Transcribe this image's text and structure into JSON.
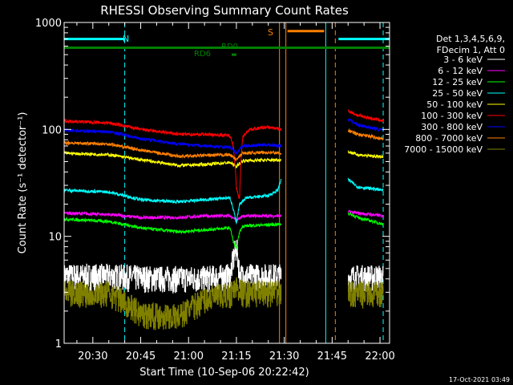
{
  "footer_timestamp": "17-Oct-2021 03:49",
  "chart_data": {
    "type": "line",
    "title": "RHESSI Observing Summary Count Rates",
    "xlabel": "Start Time (10-Sep-06 20:22:42)",
    "ylabel": "Count Rate (s⁻¹ detector⁻¹)",
    "yscale": "log",
    "ylim": [
      1,
      1000
    ],
    "xlim_min": [
      -4,
      98
    ],
    "x_ticks": [
      {
        "min": 5,
        "label": "20:30"
      },
      {
        "min": 20,
        "label": "20:45"
      },
      {
        "min": 35,
        "label": "21:00"
      },
      {
        "min": 50,
        "label": "21:15"
      },
      {
        "min": 65,
        "label": "21:30"
      },
      {
        "min": 80,
        "label": "21:45"
      },
      {
        "min": 95,
        "label": "22:00"
      }
    ],
    "y_ticks": [
      {
        "value": 1,
        "label": "1"
      },
      {
        "value": 10,
        "label": "10"
      },
      {
        "value": 100,
        "label": "100"
      },
      {
        "value": 1000,
        "label": "1000"
      }
    ],
    "legend": {
      "placement": "right",
      "header": [
        "Det 1,3,4,5,6,9,",
        "FDecim 1, Att 0"
      ]
    },
    "series": [
      {
        "name": "3 - 6 keV",
        "color": "#ffffff",
        "mode": "noisy",
        "segments": [
          [
            [
              -4,
              4.3
            ],
            [
              10,
              4.3
            ],
            [
              25,
              4.1
            ],
            [
              40,
              4.1
            ],
            [
              48,
              4.3
            ],
            [
              50,
              8
            ],
            [
              51,
              4.3
            ],
            [
              64,
              4.3
            ]
          ],
          [
            [
              85,
              4.2
            ],
            [
              96,
              4.2
            ]
          ]
        ]
      },
      {
        "name": "6 - 12 keV",
        "color": "#ff00ff",
        "segments": [
          [
            [
              -4,
              16.5
            ],
            [
              10,
              16
            ],
            [
              20,
              15
            ],
            [
              32,
              15
            ],
            [
              40,
              15.5
            ],
            [
              48,
              15.5
            ],
            [
              50,
              14
            ],
            [
              52,
              15.5
            ],
            [
              64,
              15.5
            ]
          ],
          [
            [
              85,
              17
            ],
            [
              88,
              16.5
            ],
            [
              96,
              15.5
            ]
          ]
        ]
      },
      {
        "name": "12 - 25 keV",
        "color": "#00ff00",
        "segments": [
          [
            [
              -4,
              14.5
            ],
            [
              10,
              13.8
            ],
            [
              20,
              12
            ],
            [
              32,
              11
            ],
            [
              40,
              11.5
            ],
            [
              48,
              12
            ],
            [
              49,
              9
            ],
            [
              50,
              7.5
            ],
            [
              51,
              11
            ],
            [
              52,
              12.5
            ],
            [
              64,
              13
            ]
          ],
          [
            [
              85,
              16.5
            ],
            [
              88,
              15
            ],
            [
              96,
              13
            ]
          ]
        ]
      },
      {
        "name": "25 - 50 keV",
        "color": "#00ffff",
        "segments": [
          [
            [
              -4,
              27
            ],
            [
              10,
              26
            ],
            [
              20,
              22
            ],
            [
              32,
              21
            ],
            [
              40,
              22
            ],
            [
              48,
              23
            ],
            [
              49,
              18
            ],
            [
              50,
              13
            ],
            [
              51,
              20
            ],
            [
              53,
              23
            ],
            [
              60,
              24
            ],
            [
              63,
              27
            ],
            [
              64,
              34
            ]
          ],
          [
            [
              85,
              34
            ],
            [
              88,
              29
            ],
            [
              96,
              27
            ]
          ]
        ]
      },
      {
        "name": "50 - 100 keV",
        "color": "#ffff00",
        "segments": [
          [
            [
              -4,
              60
            ],
            [
              10,
              58
            ],
            [
              20,
              52
            ],
            [
              32,
              46
            ],
            [
              40,
              47
            ],
            [
              48,
              49
            ],
            [
              50,
              45
            ],
            [
              52,
              51
            ],
            [
              64,
              52
            ]
          ],
          [
            [
              85,
              62
            ],
            [
              88,
              58
            ],
            [
              96,
              55
            ]
          ]
        ]
      },
      {
        "name": "100 - 300 keV",
        "color": "#ff0000",
        "segments": [
          [
            [
              -4,
              120
            ],
            [
              10,
              115
            ],
            [
              20,
              100
            ],
            [
              32,
              90
            ],
            [
              40,
              90
            ],
            [
              48,
              88
            ],
            [
              49,
              70
            ],
            [
              50,
              28
            ],
            [
              51,
              22
            ],
            [
              52,
              85
            ],
            [
              54,
              100
            ],
            [
              60,
              105
            ],
            [
              64,
              100
            ]
          ],
          [
            [
              85,
              150
            ],
            [
              88,
              135
            ],
            [
              96,
              120
            ]
          ]
        ]
      },
      {
        "name": "300 - 800 keV",
        "color": "#0000ff",
        "segments": [
          [
            [
              -4,
              98
            ],
            [
              10,
              95
            ],
            [
              20,
              82
            ],
            [
              32,
              73
            ],
            [
              40,
              70
            ],
            [
              48,
              68
            ],
            [
              50,
              60
            ],
            [
              52,
              70
            ],
            [
              60,
              72
            ],
            [
              64,
              70
            ]
          ],
          [
            [
              85,
              125
            ],
            [
              88,
              110
            ],
            [
              96,
              98
            ]
          ]
        ]
      },
      {
        "name": "800 - 7000 keV",
        "color": "#ff8000",
        "segments": [
          [
            [
              -4,
              75
            ],
            [
              10,
              73
            ],
            [
              20,
              64
            ],
            [
              32,
              56
            ],
            [
              40,
              57
            ],
            [
              48,
              58
            ],
            [
              50,
              52
            ],
            [
              52,
              60
            ],
            [
              60,
              61
            ],
            [
              64,
              60
            ]
          ],
          [
            [
              85,
              98
            ],
            [
              88,
              90
            ],
            [
              96,
              82
            ]
          ]
        ]
      },
      {
        "name": "7000 - 15000 keV",
        "color": "#808000",
        "mode": "noisy",
        "segments": [
          [
            [
              -4,
              3.0
            ],
            [
              10,
              3.0
            ],
            [
              20,
              1.9
            ],
            [
              32,
              1.8
            ],
            [
              40,
              2.6
            ],
            [
              48,
              2.9
            ],
            [
              50,
              3.4
            ],
            [
              52,
              3.0
            ],
            [
              64,
              3.0
            ]
          ],
          [
            [
              85,
              3.0
            ],
            [
              96,
              2.9
            ]
          ]
        ]
      }
    ],
    "annotations": [
      {
        "label": "N",
        "color": "#00ffff"
      },
      {
        "label": "S",
        "color": "#ff8000"
      },
      {
        "label": "RD6",
        "color": "#008000"
      },
      {
        "label": "RD0",
        "color": "#008000"
      }
    ],
    "flag_bars": [
      {
        "name": "night",
        "color": "#00ffff",
        "level": 700,
        "ranges": [
          [
            -4,
            15
          ],
          [
            82,
            98
          ]
        ]
      },
      {
        "name": "saa",
        "color": "#ff8000",
        "level": 830,
        "ranges": [
          [
            66,
            77.5
          ]
        ]
      },
      {
        "name": "rd-main",
        "color": "#008000",
        "level": 580,
        "ranges": [
          [
            -4,
            98
          ]
        ]
      },
      {
        "name": "rd6",
        "color": "#008000",
        "level": 500,
        "ranges": [
          [
            48.5,
            50
          ]
        ]
      }
    ],
    "vlines": [
      {
        "min": -4,
        "color": "#00ffff",
        "style": "solid"
      },
      {
        "min": 15,
        "color": "#00ffff",
        "style": "dashed"
      },
      {
        "min": 63.5,
        "color": "#ff8000",
        "style": "solid"
      },
      {
        "min": 65.5,
        "color": "#ff8000",
        "style": "solid"
      },
      {
        "min": 78,
        "color": "#00ffff",
        "style": "solid"
      },
      {
        "min": 81,
        "color": "#ff8000",
        "style": "dashed"
      },
      {
        "min": 96,
        "color": "#00ffff",
        "style": "dashed"
      }
    ]
  }
}
